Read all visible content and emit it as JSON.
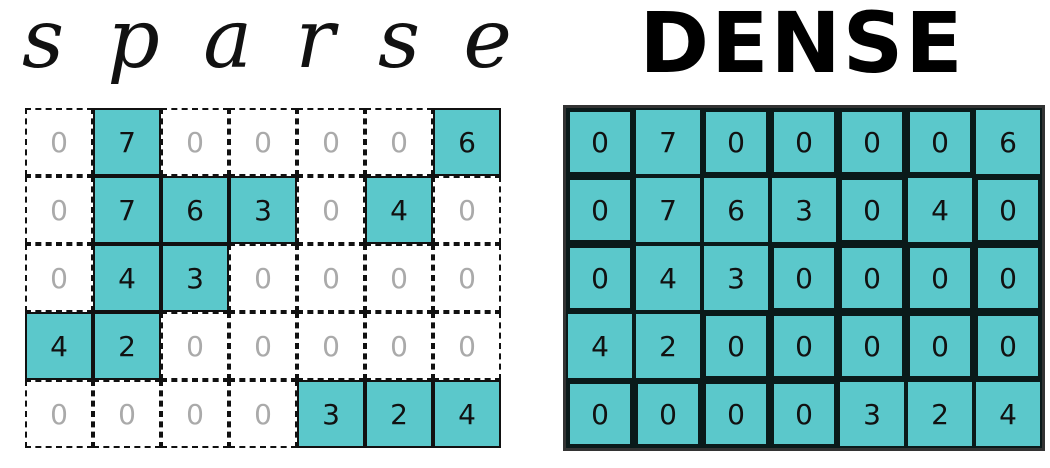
{
  "sparse_title": [
    "s",
    "p",
    "a",
    "r",
    "s",
    "e"
  ],
  "dense_title": "DENSE",
  "fill_color": "#5bc8cb",
  "matrix": [
    [
      0,
      7,
      0,
      0,
      0,
      0,
      6
    ],
    [
      0,
      7,
      6,
      3,
      0,
      4,
      0
    ],
    [
      0,
      4,
      3,
      0,
      0,
      0,
      0
    ],
    [
      4,
      2,
      0,
      0,
      0,
      0,
      0
    ],
    [
      0,
      0,
      0,
      0,
      3,
      2,
      4
    ]
  ]
}
